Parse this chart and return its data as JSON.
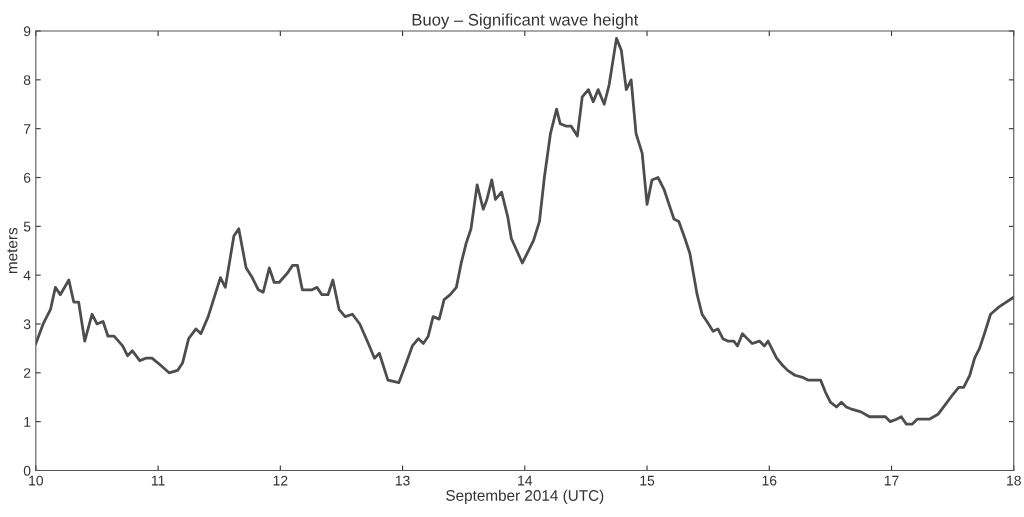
{
  "chart_data": {
    "type": "line",
    "title": "Buoy – Significant wave height",
    "xlabel": "September 2014 (UTC)",
    "ylabel": "meters",
    "xlim": [
      10,
      18
    ],
    "xticks": [
      10,
      11,
      12,
      13,
      14,
      15,
      16,
      17,
      18
    ],
    "ylim": [
      0,
      9
    ],
    "yticks": [
      0,
      1,
      2,
      3,
      4,
      5,
      6,
      7,
      8,
      9
    ],
    "grid": false,
    "marker": "none",
    "line_style": "solid",
    "series": [
      {
        "color": "#4d4d4d",
        "x": [
          10.0,
          10.06,
          10.12,
          10.16,
          10.2,
          10.27,
          10.31,
          10.35,
          10.4,
          10.46,
          10.5,
          10.55,
          10.59,
          10.64,
          10.71,
          10.75,
          10.79,
          10.85,
          10.9,
          10.95,
          11.0,
          11.09,
          11.16,
          11.2,
          11.25,
          11.31,
          11.35,
          11.41,
          11.46,
          11.51,
          11.55,
          11.62,
          11.66,
          11.72,
          11.77,
          11.82,
          11.86,
          11.91,
          11.95,
          11.99,
          12.06,
          12.1,
          12.14,
          12.18,
          12.26,
          12.3,
          12.34,
          12.39,
          12.43,
          12.48,
          12.53,
          12.59,
          12.65,
          12.72,
          12.77,
          12.81,
          12.88,
          12.97,
          13.03,
          13.08,
          13.13,
          13.17,
          13.21,
          13.25,
          13.3,
          13.34,
          13.39,
          13.44,
          13.48,
          13.52,
          13.56,
          13.61,
          13.66,
          13.69,
          13.73,
          13.76,
          13.81,
          13.86,
          13.89,
          13.98,
          14.07,
          14.12,
          14.16,
          14.21,
          14.26,
          14.29,
          14.34,
          14.38,
          14.43,
          14.47,
          14.52,
          14.56,
          14.6,
          14.65,
          14.69,
          14.75,
          14.79,
          14.83,
          14.87,
          14.91,
          14.96,
          15.0,
          15.04,
          15.09,
          15.14,
          15.18,
          15.22,
          15.26,
          15.31,
          15.35,
          15.41,
          15.45,
          15.49,
          15.54,
          15.58,
          15.62,
          15.66,
          15.71,
          15.74,
          15.78,
          15.82,
          15.86,
          15.92,
          15.96,
          15.99,
          16.06,
          16.11,
          16.15,
          16.21,
          16.28,
          16.32,
          16.37,
          16.42,
          16.46,
          16.5,
          16.55,
          16.59,
          16.63,
          16.68,
          16.75,
          16.82,
          16.9,
          16.95,
          16.99,
          17.04,
          17.08,
          17.12,
          17.17,
          17.21,
          17.25,
          17.31,
          17.38,
          17.44,
          17.5,
          17.55,
          17.59,
          17.64,
          17.68,
          17.72,
          17.76,
          17.81,
          17.88,
          18.0
        ],
        "values": [
          2.6,
          3.0,
          3.3,
          3.75,
          3.6,
          3.9,
          3.45,
          3.45,
          2.65,
          3.2,
          3.0,
          3.05,
          2.75,
          2.75,
          2.55,
          2.35,
          2.45,
          2.25,
          2.3,
          2.3,
          2.2,
          2.0,
          2.05,
          2.2,
          2.7,
          2.9,
          2.8,
          3.15,
          3.55,
          3.95,
          3.75,
          4.8,
          4.95,
          4.15,
          3.95,
          3.7,
          3.65,
          4.15,
          3.85,
          3.85,
          4.05,
          4.2,
          4.2,
          3.7,
          3.7,
          3.75,
          3.6,
          3.6,
          3.9,
          3.3,
          3.15,
          3.2,
          3.0,
          2.6,
          2.3,
          2.4,
          1.85,
          1.8,
          2.2,
          2.55,
          2.7,
          2.6,
          2.75,
          3.15,
          3.1,
          3.5,
          3.6,
          3.75,
          4.25,
          4.65,
          4.95,
          5.85,
          5.35,
          5.55,
          5.95,
          5.55,
          5.7,
          5.2,
          4.75,
          4.25,
          4.7,
          5.1,
          6.0,
          6.9,
          7.4,
          7.1,
          7.05,
          7.05,
          6.85,
          7.65,
          7.8,
          7.55,
          7.8,
          7.5,
          7.9,
          8.85,
          8.6,
          7.8,
          8.0,
          6.9,
          6.5,
          5.45,
          5.95,
          6.0,
          5.75,
          5.45,
          5.15,
          5.1,
          4.75,
          4.45,
          3.6,
          3.2,
          3.05,
          2.85,
          2.9,
          2.7,
          2.65,
          2.65,
          2.55,
          2.8,
          2.7,
          2.6,
          2.65,
          2.55,
          2.65,
          2.3,
          2.15,
          2.05,
          1.95,
          1.9,
          1.85,
          1.85,
          1.85,
          1.6,
          1.4,
          1.3,
          1.4,
          1.3,
          1.25,
          1.2,
          1.1,
          1.1,
          1.1,
          1.0,
          1.05,
          1.1,
          0.95,
          0.95,
          1.05,
          1.05,
          1.05,
          1.15,
          1.35,
          1.55,
          1.7,
          1.7,
          1.95,
          2.3,
          2.5,
          2.8,
          3.2,
          3.35,
          3.55
        ]
      }
    ]
  }
}
